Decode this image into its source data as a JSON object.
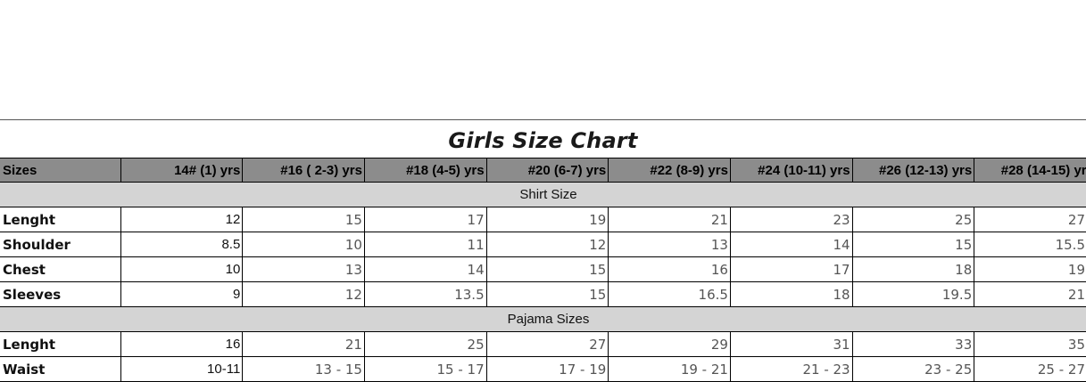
{
  "title": "Girls Size Chart",
  "headers": [
    "Sizes",
    "14#  (1) yrs",
    "#16  ( 2-3) yrs",
    "#18  (4-5) yrs",
    "#20 (6-7) yrs",
    "#22 (8-9) yrs",
    "#24 (10-11) yrs",
    "#26 (12-13) yrs",
    "#28 (14-15) yrs"
  ],
  "sections": [
    {
      "name": "Shirt Size",
      "rows": [
        {
          "label": "Lenght",
          "values": [
            "12",
            "15",
            "17",
            "19",
            "21",
            "23",
            "25",
            "27"
          ]
        },
        {
          "label": "Shoulder",
          "values": [
            "8.5",
            "10",
            "11",
            "12",
            "13",
            "14",
            "15",
            "15.5"
          ]
        },
        {
          "label": "Chest",
          "values": [
            "10",
            "13",
            "14",
            "15",
            "16",
            "17",
            "18",
            "19"
          ]
        },
        {
          "label": "Sleeves",
          "values": [
            "9",
            "12",
            "13.5",
            "15",
            "16.5",
            "18",
            "19.5",
            "21"
          ]
        }
      ]
    },
    {
      "name": "Pajama Sizes",
      "rows": [
        {
          "label": "Lenght",
          "values": [
            "16",
            "21",
            "25",
            "27",
            "29",
            "31",
            "33",
            "35"
          ]
        },
        {
          "label": "Waist",
          "values": [
            "10-11",
            "13 - 15",
            "15 - 17",
            "17 - 19",
            "19 - 21",
            "21 - 23",
            "23 - 25",
            "25 - 27"
          ]
        }
      ]
    }
  ]
}
